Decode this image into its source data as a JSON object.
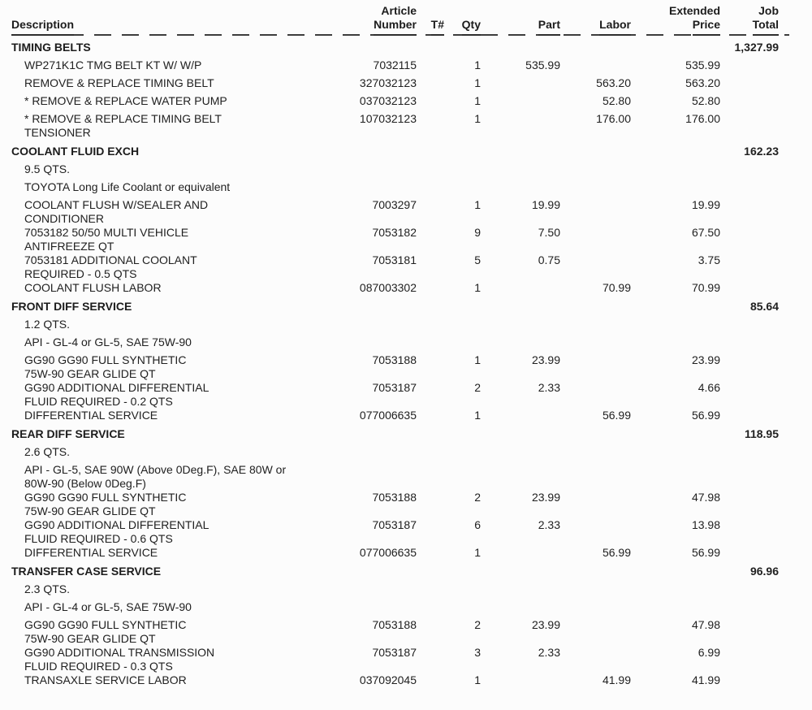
{
  "page": {
    "background_color": "#fcfcfc",
    "text_color": "#212121"
  },
  "table": {
    "columns": {
      "description": "Description",
      "article": [
        "Article",
        "Number"
      ],
      "t": "T#",
      "qty": "Qty",
      "part": "Part",
      "labor": "Labor",
      "extended": [
        "Extended",
        "Price"
      ],
      "job": [
        "Job",
        "Total"
      ]
    },
    "sections": [
      {
        "name": "TIMING BELTS",
        "job_total": "1,327.99",
        "notes": [],
        "items": [
          {
            "desc": "WP271K1C TMG BELT KT W/ W/P",
            "article": "7032115",
            "qty": "1",
            "part": "535.99",
            "labor": "",
            "extended": "535.99"
          },
          {
            "desc": "REMOVE & REPLACE TIMING BELT",
            "article": "327032123",
            "qty": "1",
            "part": "",
            "labor": "563.20",
            "extended": "563.20"
          },
          {
            "desc": "* REMOVE & REPLACE WATER PUMP",
            "article": "037032123",
            "qty": "1",
            "part": "",
            "labor": "52.80",
            "extended": "52.80"
          },
          {
            "desc": "* REMOVE & REPLACE TIMING BELT\nTENSIONER",
            "article": "107032123",
            "qty": "1",
            "part": "",
            "labor": "176.00",
            "extended": "176.00"
          }
        ]
      },
      {
        "name": "COOLANT FLUID EXCH",
        "job_total": "162.23",
        "notes": [
          "9.5 QTS.",
          "TOYOTA Long Life Coolant or equivalent"
        ],
        "items": [
          {
            "desc": "COOLANT FLUSH W/SEALER AND\nCONDITIONER",
            "article": "7003297",
            "qty": "1",
            "part": "19.99",
            "labor": "",
            "extended": "19.99"
          },
          {
            "desc": "7053182 50/50 MULTI VEHICLE\nANTIFREEZE QT",
            "article": "7053182",
            "qty": "9",
            "part": "7.50",
            "labor": "",
            "extended": "67.50"
          },
          {
            "desc": "7053181 ADDITIONAL COOLANT\nREQUIRED - 0.5 QTS",
            "article": "7053181",
            "qty": "5",
            "part": "0.75",
            "labor": "",
            "extended": "3.75"
          },
          {
            "desc": "COOLANT FLUSH LABOR",
            "article": "087003302",
            "qty": "1",
            "part": "",
            "labor": "70.99",
            "extended": "70.99"
          }
        ]
      },
      {
        "name": "FRONT DIFF SERVICE",
        "job_total": "85.64",
        "notes": [
          "1.2 QTS.",
          "API - GL-4 or GL-5, SAE 75W-90"
        ],
        "items": [
          {
            "desc": "GG90 GG90 FULL SYNTHETIC\n75W-90 GEAR GLIDE QT",
            "article": "7053188",
            "qty": "1",
            "part": "23.99",
            "labor": "",
            "extended": "23.99"
          },
          {
            "desc": "GG90 ADDITIONAL DIFFERENTIAL\nFLUID REQUIRED - 0.2 QTS",
            "article": "7053187",
            "qty": "2",
            "part": "2.33",
            "labor": "",
            "extended": "4.66"
          },
          {
            "desc": "DIFFERENTIAL SERVICE",
            "article": "077006635",
            "qty": "1",
            "part": "",
            "labor": "56.99",
            "extended": "56.99"
          }
        ]
      },
      {
        "name": "REAR DIFF SERVICE",
        "job_total": "118.95",
        "notes": [
          "2.6 QTS.",
          "API - GL-5, SAE 90W (Above 0Deg.F), SAE 80W or\n80W-90 (Below 0Deg.F)"
        ],
        "items": [
          {
            "desc": "GG90 GG90 FULL SYNTHETIC\n75W-90 GEAR GLIDE QT",
            "article": "7053188",
            "qty": "2",
            "part": "23.99",
            "labor": "",
            "extended": "47.98"
          },
          {
            "desc": "GG90 ADDITIONAL DIFFERENTIAL\nFLUID REQUIRED - 0.6 QTS",
            "article": "7053187",
            "qty": "6",
            "part": "2.33",
            "labor": "",
            "extended": "13.98"
          },
          {
            "desc": "DIFFERENTIAL SERVICE",
            "article": "077006635",
            "qty": "1",
            "part": "",
            "labor": "56.99",
            "extended": "56.99"
          }
        ]
      },
      {
        "name": "TRANSFER CASE SERVICE",
        "job_total": "96.96",
        "notes": [
          "2.3 QTS.",
          "API - GL-4 or GL-5, SAE 75W-90"
        ],
        "items": [
          {
            "desc": "GG90 GG90 FULL SYNTHETIC\n75W-90 GEAR GLIDE QT",
            "article": "7053188",
            "qty": "2",
            "part": "23.99",
            "labor": "",
            "extended": "47.98"
          },
          {
            "desc": "GG90 ADDITIONAL TRANSMISSION\nFLUID REQUIRED - 0.3 QTS",
            "article": "7053187",
            "qty": "3",
            "part": "2.33",
            "labor": "",
            "extended": "6.99"
          },
          {
            "desc": "TRANSAXLE SERVICE LABOR",
            "article": "037092045",
            "qty": "1",
            "part": "",
            "labor": "41.99",
            "extended": "41.99"
          }
        ]
      }
    ]
  }
}
